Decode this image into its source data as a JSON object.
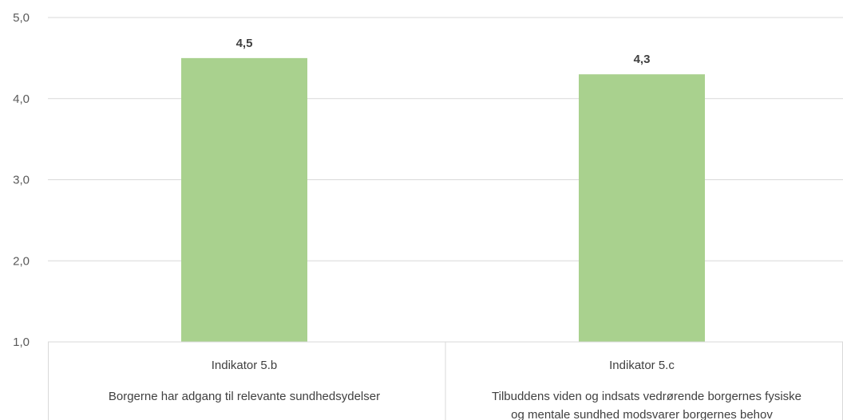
{
  "chart_data": {
    "type": "bar",
    "categories": [
      {
        "indicator": "Indikator 5.b",
        "description": [
          "Borgerne har adgang til relevante sundhedsydelser"
        ]
      },
      {
        "indicator": "Indikator 5.c",
        "description": [
          "Tilbuddens viden og indsats vedrørende borgernes fysiske",
          "og mentale sundhed modsvarer borgernes behov"
        ]
      }
    ],
    "values": [
      4.5,
      4.3
    ],
    "data_labels": [
      "4,5",
      "4,3"
    ],
    "ylim": [
      1,
      5
    ],
    "yticks": [
      1,
      2,
      3,
      4,
      5
    ],
    "ytick_labels": [
      "1,0",
      "2,0",
      "3,0",
      "4,0",
      "5,0"
    ],
    "grid": true,
    "bar_color": "#a9d18e",
    "gridline_color": "#d9d9d9",
    "title": "",
    "xlabel": "",
    "ylabel": ""
  }
}
